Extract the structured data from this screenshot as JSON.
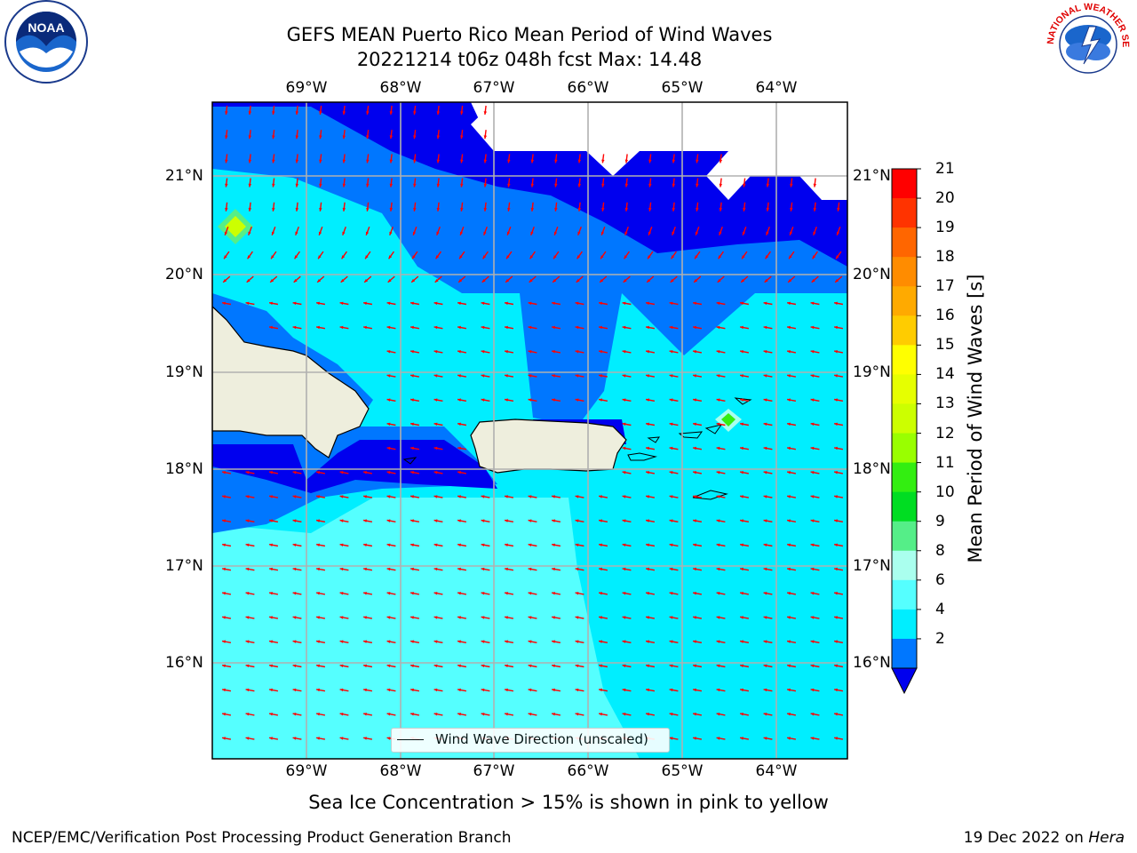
{
  "title_line1": "GEFS MEAN Puerto Rico Mean Period of Wind Waves",
  "title_line2": "20221214 t06z 048h fcst   Max: 14.48",
  "lon_labels": [
    "69°W",
    "68°W",
    "67°W",
    "66°W",
    "65°W",
    "64°W"
  ],
  "lat_labels": [
    "21°N",
    "20°N",
    "19°N",
    "18°N",
    "17°N",
    "16°N"
  ],
  "colorbar": {
    "title": "Mean Period of Wind Waves [s]",
    "ticks": [
      "21",
      "20",
      "19",
      "18",
      "17",
      "16",
      "15",
      "14",
      "13",
      "12",
      "11",
      "10",
      "9",
      "8",
      "6",
      "4",
      "2"
    ],
    "colors": [
      "#ff0000",
      "#ff3300",
      "#ff6600",
      "#ff8c00",
      "#ffaa00",
      "#ffcc00",
      "#ffff00",
      "#e6ff00",
      "#ccff00",
      "#99ff00",
      "#33ee11",
      "#00dd22",
      "#55ee88",
      "#aaffee",
      "#55ffff",
      "#00eeff",
      "#0077ff",
      "#0000ee"
    ]
  },
  "legend_label": "Wind Wave Direction (unscaled)",
  "note": "Sea Ice Concentration > 15% is shown in pink to yellow",
  "footer_left": "NCEP/EMC/Verification Post Processing Product Generation Branch",
  "footer_right_date": "19 Dec 2022 on ",
  "footer_right_host": "Hera",
  "noaa_logo_text": "NOAA",
  "nws_logo_text": "NATIONAL WEATHER SERVICE",
  "map_colors": {
    "land": "#eeeedd",
    "deep_blue": "#0000ee",
    "mid_blue": "#0077ff",
    "cyan": "#00eeff",
    "light_cyan": "#55ffff",
    "arrow": "#ff0000",
    "grid": "#b0b0b0"
  }
}
